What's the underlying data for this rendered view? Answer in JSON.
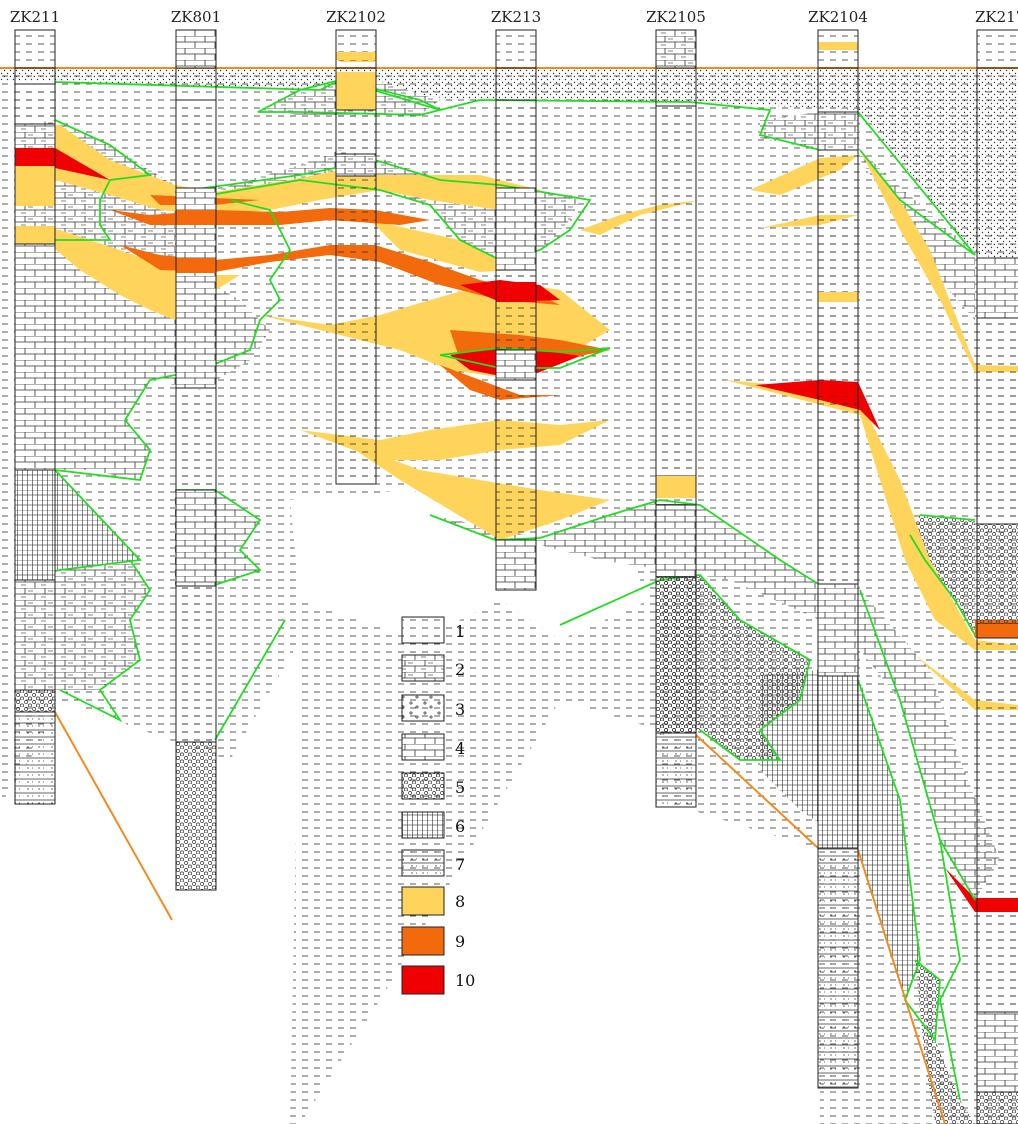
{
  "boreholes": [
    {
      "id": "ZK211"
    },
    {
      "id": "ZK801"
    },
    {
      "id": "ZK2102"
    },
    {
      "id": "ZK213"
    },
    {
      "id": "ZK2105"
    },
    {
      "id": "ZK2104"
    },
    {
      "id": "ZK217"
    }
  ],
  "legend": [
    {
      "label": "1",
      "pattern": "mudstone"
    },
    {
      "label": "2",
      "pattern": "marl"
    },
    {
      "label": "3",
      "pattern": "granite"
    },
    {
      "label": "4",
      "pattern": "limestone"
    },
    {
      "label": "5",
      "pattern": "conglomerate"
    },
    {
      "label": "6",
      "pattern": "dolomite"
    },
    {
      "label": "7",
      "pattern": "siltstone"
    },
    {
      "label": "8",
      "pattern": "fill-yellow"
    },
    {
      "label": "9",
      "pattern": "fill-orange"
    },
    {
      "label": "10",
      "pattern": "fill-red"
    }
  ],
  "colors": {
    "grade_low": "#FFD45A",
    "grade_mid": "#F26A0C",
    "grade_high": "#F00000",
    "contact": "#22DD22",
    "fault": "#F08C1E",
    "surface": "#F08C1E"
  }
}
